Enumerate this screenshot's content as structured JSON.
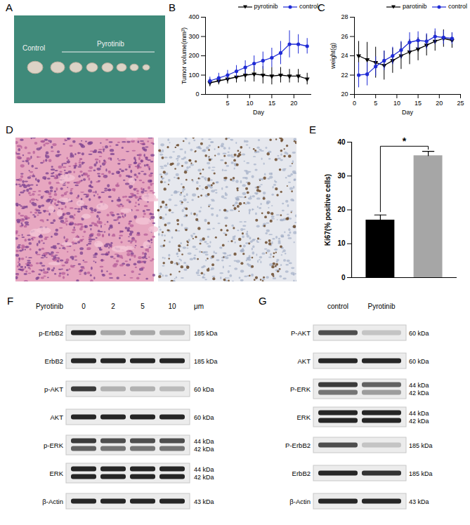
{
  "chart_data": [
    {
      "panel": "B",
      "type": "line",
      "x": [
        1,
        3,
        5,
        7,
        9,
        11,
        13,
        15,
        17,
        19,
        21,
        23
      ],
      "xlabel": "Day",
      "ylabel": "Tumor volume(mm³)",
      "xlim": [
        0,
        24
      ],
      "xticks": [
        5,
        10,
        15,
        20
      ],
      "ylim": [
        0,
        400
      ],
      "yticks": [
        0,
        100,
        200,
        300,
        400
      ],
      "legend": "top",
      "series": [
        {
          "name": "pyrotinib",
          "color": "#000000",
          "marker": "triangle-down",
          "values": [
            60,
            70,
            80,
            90,
            100,
            105,
            100,
            95,
            100,
            95,
            95,
            80
          ],
          "errors": [
            20,
            20,
            25,
            30,
            35,
            40,
            45,
            45,
            40,
            35,
            35,
            30
          ]
        },
        {
          "name": "control",
          "color": "#1f2bd6",
          "marker": "circle",
          "values": [
            70,
            85,
            100,
            120,
            140,
            160,
            175,
            190,
            215,
            260,
            260,
            250
          ],
          "errors": [
            20,
            25,
            25,
            30,
            35,
            40,
            45,
            50,
            60,
            70,
            50,
            40
          ]
        }
      ]
    },
    {
      "panel": "C",
      "type": "line",
      "x": [
        1,
        3,
        5,
        7,
        9,
        11,
        13,
        15,
        17,
        19,
        21,
        23
      ],
      "xlabel": "Day",
      "ylabel": "weight(g)",
      "xlim": [
        0,
        25
      ],
      "xticks": [
        0,
        5,
        10,
        15,
        20,
        25
      ],
      "ylim": [
        20,
        28
      ],
      "yticks": [
        20,
        22,
        24,
        26,
        28
      ],
      "legend": "top",
      "series": [
        {
          "name": "parotinib",
          "color": "#000000",
          "marker": "triangle-down",
          "values": [
            24,
            23.6,
            23.3,
            23,
            23.5,
            24,
            24.4,
            24.7,
            25.1,
            25.5,
            25.8,
            25.6
          ],
          "errors": [
            1.5,
            1.8,
            1.6,
            1.5,
            1.3,
            1.4,
            1.3,
            1.2,
            1.1,
            1,
            0.9,
            0.8
          ]
        },
        {
          "name": "control",
          "color": "#1f2bd6",
          "marker": "circle",
          "values": [
            22,
            22.1,
            22.9,
            23.5,
            24,
            24.6,
            25.4,
            25.6,
            25.5,
            26,
            25.9,
            25.8
          ],
          "errors": [
            1.3,
            1.2,
            1,
            1,
            0.9,
            0.9,
            1,
            0.9,
            0.8,
            0.8,
            0.7,
            0.6
          ]
        }
      ]
    },
    {
      "panel": "E",
      "type": "bar",
      "categories": [
        null,
        null
      ],
      "values": [
        17,
        36
      ],
      "errors": [
        1.5,
        1.3
      ],
      "colors": [
        "#000000",
        "#a6a6a6"
      ],
      "ylabel": "Ki67(% positive cells)",
      "ylim": [
        0,
        40
      ],
      "yticks": [
        0,
        10,
        20,
        30,
        40
      ],
      "annotations": [
        "*"
      ]
    }
  ],
  "images": [
    {
      "panel": "A",
      "labels": [
        "Control",
        "Pyrotinib"
      ]
    },
    {
      "panel": "D"
    }
  ],
  "blots": [
    {
      "panel": "F",
      "treatment": "Pyrotinib",
      "lanes": [
        0,
        2,
        5,
        10
      ],
      "unit": "μm",
      "rows": [
        {
          "label": "p-ErbB2",
          "kda": [
            "185 kDa"
          ],
          "bands": [
            [
              1,
              0.35,
              0.35,
              0.3
            ]
          ]
        },
        {
          "label": "ErbB2",
          "kda": [
            "185 kDa"
          ],
          "bands": [
            [
              1,
              1,
              1,
              1
            ]
          ]
        },
        {
          "label": "p-AKT",
          "kda": [
            "60 kDa"
          ],
          "bands": [
            [
              0.9,
              0.3,
              0.3,
              0.25
            ]
          ]
        },
        {
          "label": "AKT",
          "kda": [
            "60 kDa"
          ],
          "bands": [
            [
              1,
              1,
              1,
              1
            ]
          ]
        },
        {
          "label": "p-ERK",
          "kda": [
            "44 kDa",
            "42 kDa"
          ],
          "bands": [
            [
              0.9,
              0.8,
              0.8,
              0.8
            ],
            [
              0.7,
              0.6,
              0.6,
              0.6
            ]
          ]
        },
        {
          "label": "ERK",
          "kda": [
            "44 kDa",
            "42 kDa"
          ],
          "bands": [
            [
              1,
              1,
              1,
              1
            ],
            [
              1,
              1,
              1,
              1
            ]
          ]
        },
        {
          "label": "β-Actin",
          "kda": [
            "43 kDa"
          ],
          "bands": [
            [
              1,
              1,
              1,
              1
            ]
          ]
        }
      ]
    },
    {
      "panel": "G",
      "lanes": [
        "control",
        "Pyrotinib"
      ],
      "rows": [
        {
          "label": "P-AKT",
          "kda": [
            "60 kDa"
          ],
          "bands": [
            [
              0.8,
              0.2
            ]
          ]
        },
        {
          "label": "AKT",
          "kda": [
            "60 kDa"
          ],
          "bands": [
            [
              1,
              1
            ]
          ]
        },
        {
          "label": "P-ERK",
          "kda": [
            "44 kDa",
            "42 kDa"
          ],
          "bands": [
            [
              0.9,
              0.7
            ],
            [
              0.6,
              0.4
            ]
          ]
        },
        {
          "label": "ERK",
          "kda": [
            "44 kDa",
            "42 kDa"
          ],
          "bands": [
            [
              1,
              1
            ],
            [
              1,
              1
            ]
          ]
        },
        {
          "label": "P-ErbB2",
          "kda": [
            "185 kDa"
          ],
          "bands": [
            [
              0.8,
              0.2
            ]
          ]
        },
        {
          "label": "ErbB2",
          "kda": [
            "185 kDa"
          ],
          "bands": [
            [
              1,
              0.95
            ]
          ]
        },
        {
          "label": "β-Actin",
          "kda": [
            "43 kDa"
          ],
          "bands": [
            [
              1,
              1
            ]
          ]
        }
      ]
    }
  ]
}
